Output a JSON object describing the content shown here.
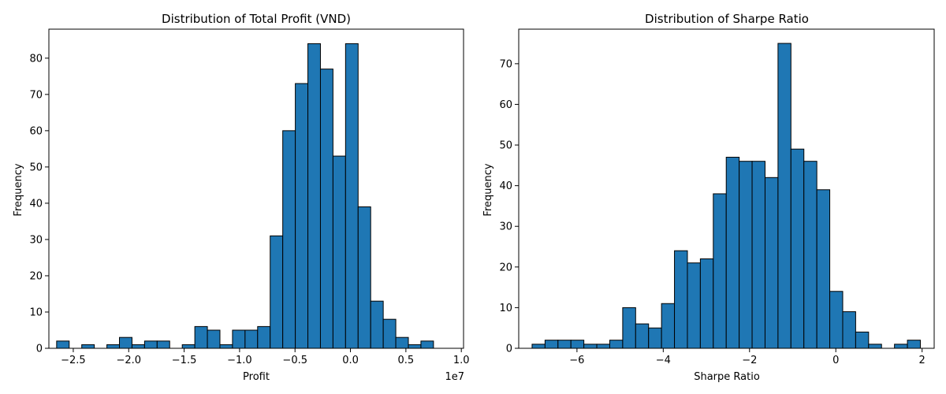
{
  "chart_data": [
    {
      "type": "bar",
      "title": "Distribution of Total Profit (VND)",
      "xlabel": "Profit",
      "ylabel": "Frequency",
      "x_offset_label": "1e7",
      "x_scale": 10000000,
      "xlim": [
        -2.72,
        1.02
      ],
      "ylim": [
        0,
        88
      ],
      "x_ticks": [
        -2.5,
        -2.0,
        -1.5,
        -1.0,
        -0.5,
        0.0,
        0.5,
        1.0
      ],
      "x_tick_labels": [
        "−2.5",
        "−2.0",
        "−1.5",
        "−1.0",
        "−0.5",
        "0.0",
        "0.5",
        "1.0"
      ],
      "y_ticks": [
        0,
        10,
        20,
        30,
        40,
        50,
        60,
        70,
        80
      ],
      "y_tick_labels": [
        "0",
        "10",
        "20",
        "30",
        "40",
        "50",
        "60",
        "70",
        "80"
      ],
      "bin_start": -2.65,
      "bin_width": 0.1133,
      "values": [
        2,
        0,
        1,
        0,
        1,
        3,
        1,
        2,
        2,
        0,
        1,
        6,
        5,
        1,
        5,
        5,
        6,
        31,
        60,
        73,
        84,
        77,
        53,
        84,
        39,
        13,
        8,
        3,
        1,
        2
      ],
      "grid": false,
      "color": "#1f77b4"
    },
    {
      "type": "bar",
      "title": "Distribution of Sharpe Ratio",
      "xlabel": "Sharpe Ratio",
      "ylabel": "Frequency",
      "xlim": [
        -7.35,
        2.28
      ],
      "ylim": [
        0,
        78.5
      ],
      "x_ticks": [
        -6,
        -4,
        -2,
        0,
        2
      ],
      "x_tick_labels": [
        "−6",
        "−4",
        "−2",
        "0",
        "2"
      ],
      "y_ticks": [
        0,
        10,
        20,
        30,
        40,
        50,
        60,
        70
      ],
      "y_tick_labels": [
        "0",
        "10",
        "20",
        "30",
        "40",
        "50",
        "60",
        "70"
      ],
      "bin_start": -7.04,
      "bin_width": 0.3,
      "values": [
        1,
        2,
        2,
        2,
        1,
        1,
        2,
        10,
        6,
        5,
        11,
        24,
        21,
        22,
        38,
        47,
        46,
        46,
        42,
        75,
        49,
        46,
        39,
        14,
        9,
        4,
        1,
        0,
        1,
        2
      ],
      "grid": false,
      "color": "#1f77b4"
    }
  ]
}
